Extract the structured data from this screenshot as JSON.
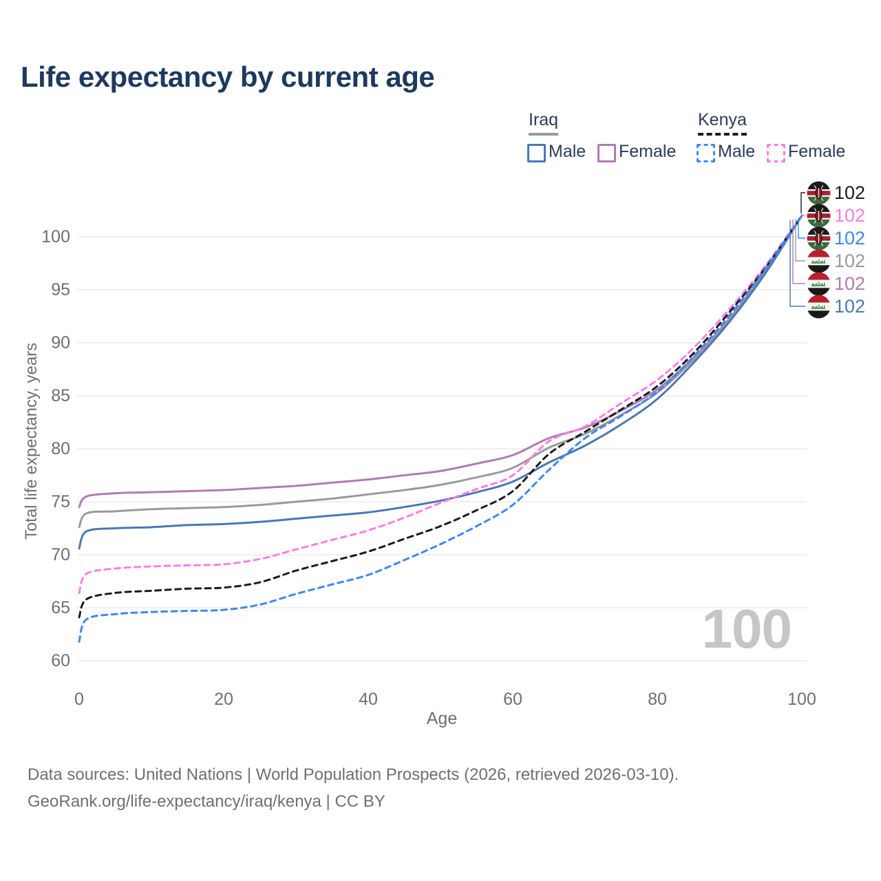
{
  "title": "Life expectancy by current age",
  "legend": {
    "groups": [
      {
        "name": "Iraq",
        "line_style": "solid",
        "underline_color": "#9a9a9a",
        "items": [
          {
            "label": "Male",
            "color": "#4a77b4"
          },
          {
            "label": "Female",
            "color": "#b07ab3"
          }
        ]
      },
      {
        "name": "Kenya",
        "line_style": "dashed",
        "underline_color": "#1b1b1b",
        "items": [
          {
            "label": "Male",
            "color": "#3e86f4"
          },
          {
            "label": "Female",
            "color": "#fb7de4"
          }
        ]
      }
    ]
  },
  "chart_data": {
    "type": "line",
    "title": "Life expectancy by current age",
    "xlabel": "Age",
    "ylabel": "Total life expectancy, years",
    "xlim": [
      0,
      100
    ],
    "ylim": [
      58.5,
      103.5
    ],
    "x_ticks": [
      0,
      20,
      40,
      60,
      80,
      100
    ],
    "y_ticks": [
      60,
      65,
      70,
      75,
      80,
      85,
      90,
      95,
      100
    ],
    "grid": "horizontal",
    "legend_position": "top-right",
    "age_indicator": "100",
    "ages": [
      0,
      1,
      5,
      10,
      15,
      20,
      25,
      30,
      35,
      40,
      45,
      50,
      55,
      60,
      65,
      70,
      75,
      80,
      85,
      90,
      95,
      100
    ],
    "series": [
      {
        "name": "Iraq Female",
        "country": "Iraq",
        "sex": "Female",
        "style": "solid",
        "color": "#b07ab3",
        "values": [
          74.5,
          75.5,
          75.8,
          75.9,
          76.0,
          76.1,
          76.3,
          76.5,
          76.8,
          77.1,
          77.5,
          77.9,
          78.6,
          79.4,
          81.0,
          82.0,
          83.6,
          85.6,
          88.6,
          92.3,
          96.9,
          102
        ]
      },
      {
        "name": "Iraq Total",
        "country": "Iraq",
        "sex": "Both",
        "style": "solid",
        "color": "#9a9a9a",
        "values": [
          72.6,
          73.9,
          74.1,
          74.3,
          74.4,
          74.5,
          74.7,
          75.0,
          75.3,
          75.7,
          76.1,
          76.6,
          77.3,
          78.2,
          80.1,
          81.4,
          83.2,
          85.3,
          88.4,
          92.2,
          96.8,
          102
        ]
      },
      {
        "name": "Iraq Male",
        "country": "Iraq",
        "sex": "Male",
        "style": "solid",
        "color": "#4a77b4",
        "values": [
          70.6,
          72.2,
          72.5,
          72.6,
          72.8,
          72.9,
          73.1,
          73.4,
          73.7,
          74.0,
          74.5,
          75.1,
          75.9,
          76.9,
          78.7,
          80.3,
          82.3,
          84.7,
          88.1,
          92.0,
          96.6,
          102
        ]
      },
      {
        "name": "Kenya Female",
        "country": "Kenya",
        "sex": "Female",
        "style": "dashed",
        "color": "#fb7de4",
        "values": [
          66.4,
          68.2,
          68.7,
          68.9,
          69.0,
          69.1,
          69.6,
          70.5,
          71.4,
          72.3,
          73.5,
          74.9,
          76.2,
          77.5,
          80.7,
          82.1,
          84.3,
          86.5,
          89.5,
          93.2,
          97.3,
          102
        ]
      },
      {
        "name": "Kenya Total",
        "country": "Kenya",
        "sex": "Both",
        "style": "dashed",
        "color": "#1b1b1b",
        "values": [
          64.1,
          65.8,
          66.4,
          66.6,
          66.8,
          66.9,
          67.4,
          68.5,
          69.4,
          70.3,
          71.5,
          72.7,
          74.2,
          76.0,
          79.5,
          81.6,
          83.7,
          85.9,
          89.0,
          92.9,
          97.1,
          102
        ]
      },
      {
        "name": "Kenya Male",
        "country": "Kenya",
        "sex": "Male",
        "style": "dashed",
        "color": "#3e86f4",
        "values": [
          61.8,
          63.9,
          64.4,
          64.6,
          64.7,
          64.8,
          65.3,
          66.3,
          67.2,
          68.1,
          69.5,
          71.0,
          72.7,
          74.7,
          78.0,
          81.0,
          83.1,
          85.4,
          88.7,
          92.6,
          97.0,
          102
        ]
      }
    ],
    "end_labels": [
      {
        "flag": "kenya",
        "series": "Kenya Total",
        "value": "102",
        "color": "#1b1b1b"
      },
      {
        "flag": "kenya",
        "series": "Kenya Female",
        "value": "102",
        "color": "#fb7de4"
      },
      {
        "flag": "kenya",
        "series": "Kenya Male",
        "value": "102",
        "color": "#3e86f4"
      },
      {
        "flag": "iraq",
        "series": "Iraq Total",
        "value": "102",
        "color": "#9a9a9a"
      },
      {
        "flag": "iraq",
        "series": "Iraq Female",
        "value": "102",
        "color": "#b07ab3"
      },
      {
        "flag": "iraq",
        "series": "Iraq Male",
        "value": "102",
        "color": "#4a77b4"
      }
    ]
  },
  "footer": {
    "line1": "Data sources: United Nations | World Population Prospects (2026, retrieved 2026-03-10).",
    "line2": "GeoRank.org/life-expectancy/iraq/kenya | CC BY"
  }
}
